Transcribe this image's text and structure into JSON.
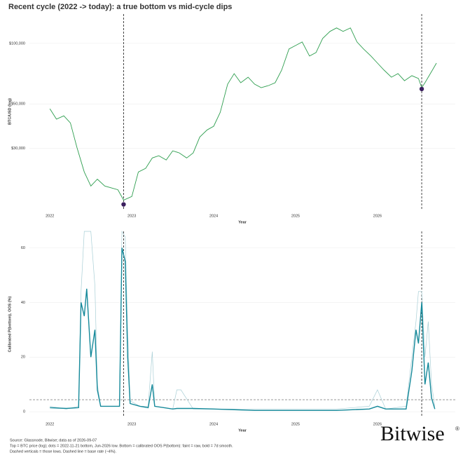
{
  "title": "Recent cycle (2022 -> today): a true bottom vs mid-cycle dips",
  "chart_data": [
    {
      "type": "line",
      "y_label": "BTC/USD (log)",
      "x_label": "Year",
      "log_scale": true,
      "grid": true,
      "xlim": [
        2021.75,
        2026.95
      ],
      "xticks": [
        2022,
        2023,
        2024,
        2025,
        2026
      ],
      "ylim": [
        15000,
        140000
      ],
      "yticks": [
        {
          "value": 30000,
          "label": "$30,000"
        },
        {
          "value": 50000,
          "label": "$50,000"
        },
        {
          "value": 100000,
          "label": "$100,000"
        }
      ],
      "x": [
        2022.0,
        2022.08,
        2022.17,
        2022.25,
        2022.33,
        2022.42,
        2022.5,
        2022.58,
        2022.67,
        2022.75,
        2022.83,
        2022.9,
        2023.0,
        2023.08,
        2023.17,
        2023.25,
        2023.33,
        2023.42,
        2023.5,
        2023.58,
        2023.67,
        2023.75,
        2023.83,
        2023.92,
        2024.0,
        2024.08,
        2024.17,
        2024.25,
        2024.33,
        2024.42,
        2024.5,
        2024.58,
        2024.67,
        2024.75,
        2024.83,
        2024.92,
        2025.0,
        2025.08,
        2025.17,
        2025.25,
        2025.33,
        2025.42,
        2025.5,
        2025.58,
        2025.67,
        2025.75,
        2025.83,
        2025.92,
        2026.0,
        2026.08,
        2026.17,
        2026.25,
        2026.33,
        2026.42,
        2026.5,
        2026.54,
        2026.58,
        2026.67,
        2026.72
      ],
      "series": [
        {
          "color": "#2e9e4f",
          "values": [
            47300,
            42000,
            43600,
            40200,
            30400,
            22900,
            19500,
            21100,
            19500,
            19100,
            18700,
            16600,
            17300,
            22900,
            23900,
            26900,
            27600,
            26300,
            29200,
            28500,
            26900,
            28500,
            34200,
            37100,
            38700,
            45400,
            62700,
            70700,
            63700,
            67900,
            62700,
            60200,
            61700,
            63700,
            73600,
            93800,
            97600,
            101600,
            86500,
            90100,
            105800,
            114700,
            119400,
            114700,
            119400,
            101600,
            93800,
            86500,
            79800,
            73600,
            67900,
            70700,
            65200,
            69100,
            66900,
            60200,
            63700,
            73600,
            79800
          ]
        }
      ],
      "markers": {
        "color": "#3b1f5e",
        "x": [
          2022.9,
          2026.54
        ],
        "values": [
          15800,
          59300
        ]
      }
    },
    {
      "type": "line",
      "y_label": "Calibrated P(bottom), OOS (%)",
      "x_label": "Year",
      "grid": true,
      "xlim": [
        2021.75,
        2026.95
      ],
      "xticks": [
        2022,
        2023,
        2024,
        2025,
        2026
      ],
      "ylim": [
        -2,
        66
      ],
      "yticks": [
        0,
        20,
        40,
        60
      ],
      "event_x": [
        2022.9,
        2026.54
      ],
      "base_rate": 4.4,
      "x": [
        2022.0,
        2022.2,
        2022.35,
        2022.38,
        2022.42,
        2022.45,
        2022.5,
        2022.55,
        2022.58,
        2022.62,
        2022.75,
        2022.85,
        2022.88,
        2022.92,
        2022.95,
        2022.98,
        2023.1,
        2023.2,
        2023.25,
        2023.28,
        2023.5,
        2023.55,
        2023.6,
        2023.75,
        2024.0,
        2024.5,
        2025.0,
        2025.5,
        2025.9,
        2026.0,
        2026.1,
        2026.35,
        2026.42,
        2026.47,
        2026.5,
        2026.54,
        2026.58,
        2026.62,
        2026.66,
        2026.7
      ],
      "series": [
        {
          "color": "#a9cfd6",
          "width": 0.7,
          "values": [
            2,
            1,
            2,
            44,
            66,
            66,
            66,
            46,
            10,
            2,
            2,
            2,
            66,
            64,
            30,
            4,
            2,
            2,
            22,
            2,
            1,
            8,
            8,
            1,
            1,
            1,
            1,
            1,
            2,
            8,
            1,
            2,
            20,
            33,
            44,
            44,
            20,
            33,
            10,
            2
          ]
        },
        {
          "color": "#15899a",
          "width": 1.4,
          "values": [
            1.5,
            1.2,
            1.5,
            40,
            35,
            45,
            20,
            30,
            8,
            2,
            2,
            2,
            60,
            55,
            20,
            3,
            2,
            1.5,
            10,
            2,
            1,
            1.2,
            1.2,
            1.2,
            1,
            0.5,
            0.5,
            0.5,
            1,
            2,
            1,
            1,
            15,
            30,
            25,
            40,
            10,
            18,
            5,
            1
          ]
        }
      ]
    }
  ],
  "footer": [
    "Source: Glassnode, Bitwise; data as of 2026-09-07",
    "Top = BTC price (log); dots = 2022-11-21 bottom, Jun-2026 low. Bottom = calibrated OOS P(bottom): faint = raw, bold = 7d smooth.",
    "Dashed verticals = those lows. Dashed line = base rate (~4%)."
  ],
  "logo": "Bitwise"
}
